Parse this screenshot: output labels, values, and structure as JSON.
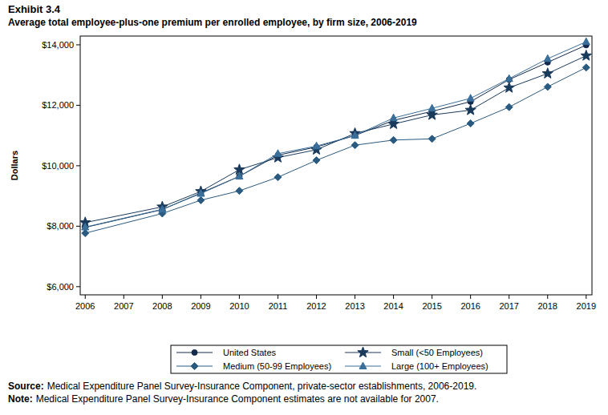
{
  "chart_data": {
    "type": "line",
    "title": "Exhibit 3.4",
    "subtitle": "Average total employee-plus-one premium per enrolled employee, by firm size, 2006-2019",
    "y_label": "Dollars",
    "x": [
      2006,
      2008,
      2009,
      2010,
      2011,
      2012,
      2013,
      2014,
      2015,
      2016,
      2017,
      2018,
      2019
    ],
    "series": [
      {
        "name": "United States",
        "color": "#13294b",
        "marker": "circle",
        "values": [
          7960,
          8550,
          9100,
          9650,
          10350,
          10620,
          11000,
          11500,
          11800,
          12120,
          12850,
          13420,
          13990
        ]
      },
      {
        "name": "Small (<50 Employees)",
        "color": "#1a3a5c",
        "marker": "star",
        "values": [
          8120,
          8640,
          9150,
          9870,
          10270,
          10530,
          11070,
          11380,
          11680,
          11840,
          12580,
          13050,
          13640
        ]
      },
      {
        "name": "Medium (50-99 Employees)",
        "color": "#2a5a80",
        "marker": "diamond",
        "values": [
          7770,
          8420,
          8860,
          9170,
          9620,
          10180,
          10680,
          10850,
          10890,
          11400,
          11940,
          12610,
          13250
        ]
      },
      {
        "name": "Large (100+ Employees)",
        "color": "#3a6f9a",
        "marker": "triangle",
        "values": [
          7970,
          8560,
          9080,
          9650,
          10400,
          10650,
          11000,
          11580,
          11900,
          12230,
          12880,
          13540,
          14100
        ]
      }
    ],
    "xlim": [
      2005.87,
      2019.15
    ],
    "xticks": [
      2006,
      2007,
      2008,
      2009,
      2010,
      2011,
      2012,
      2013,
      2014,
      2015,
      2016,
      2017,
      2018,
      2019
    ],
    "ylim": [
      5730,
      14290
    ],
    "yticks": [
      {
        "value": 6000,
        "label": "$6,000"
      },
      {
        "value": 8000,
        "label": "$8,000"
      },
      {
        "value": 10000,
        "label": "$10,000"
      },
      {
        "value": 12000,
        "label": "$12,000"
      },
      {
        "value": 14000,
        "label": "$14,000"
      }
    ],
    "grid": false,
    "legend": "bottom",
    "source_label": "Source:",
    "source": "Medical Expenditure Panel Survey-Insurance Component, private-sector establishments, 2006-2019.",
    "note_label": "Note:",
    "note": "Medical Expenditure Panel Survey-Insurance Component estimates are not available for 2007."
  }
}
